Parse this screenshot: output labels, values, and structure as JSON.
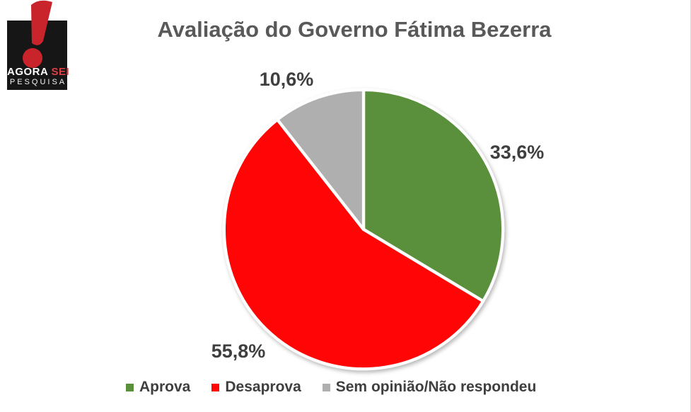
{
  "logo": {
    "line1_part1": "AGORA",
    "line1_part2": "SEI",
    "line2": "PESQUISA",
    "mark": "exclamation",
    "colors": {
      "box": "#161616",
      "exclamation": "#c9242b",
      "accent_text": "#de3f44",
      "text": "#ffffff"
    }
  },
  "chart_data": {
    "type": "pie",
    "title": "Avaliação do Governo Fátima Bezerra",
    "categories": [
      "Aprova",
      "Desaprova",
      "Sem opinião/Não respondeu"
    ],
    "values": [
      33.6,
      55.8,
      10.6
    ],
    "value_labels": [
      "33,6%",
      "55,8%",
      "10,6%"
    ],
    "colors": [
      "#5a8f3c",
      "#ff0505",
      "#afafaf"
    ],
    "start_angle_deg": 0,
    "direction": "clockwise",
    "legend_position": "bottom",
    "title_color": "#595959",
    "label_color": "#3f3f3f",
    "slice_border_color": "#ffffff"
  }
}
